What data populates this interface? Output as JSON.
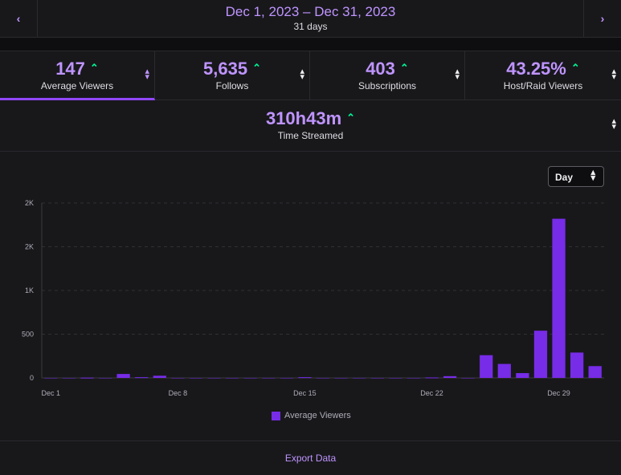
{
  "date_range": {
    "title": "Dec 1, 2023 – Dec 31, 2023",
    "subtitle": "31 days"
  },
  "nav": {
    "prev": "‹",
    "next": "›"
  },
  "stats": [
    {
      "value": "147",
      "label": "Average Viewers",
      "trend": "up",
      "active": true
    },
    {
      "value": "5,635",
      "label": "Follows",
      "trend": "up",
      "active": false
    },
    {
      "value": "403",
      "label": "Subscriptions",
      "trend": "up",
      "active": false
    },
    {
      "value": "43.25%",
      "label": "Host/Raid Viewers",
      "trend": "up",
      "active": false
    },
    {
      "value": "310h43m",
      "label": "Time Streamed",
      "trend": "up",
      "active": false
    }
  ],
  "granularity_select": {
    "value": "Day"
  },
  "export_label": "Export Data",
  "colors": {
    "accent": "#bf94ff",
    "bar": "#772ce8",
    "trend_up": "#00f593"
  },
  "chart_data": {
    "type": "bar",
    "x_tick_labels": [
      "Dec 1",
      "Dec 8",
      "Dec 15",
      "Dec 22",
      "Dec 29"
    ],
    "y_tick_labels": [
      "0",
      "500",
      "1K",
      "2K",
      "2K"
    ],
    "ylim": [
      0,
      2000
    ],
    "grid": true,
    "legend": "bottom-center",
    "series": [
      {
        "name": "Average Viewers",
        "categories": [
          "Dec 1",
          "Dec 2",
          "Dec 3",
          "Dec 4",
          "Dec 5",
          "Dec 6",
          "Dec 7",
          "Dec 8",
          "Dec 9",
          "Dec 10",
          "Dec 11",
          "Dec 12",
          "Dec 13",
          "Dec 14",
          "Dec 15",
          "Dec 16",
          "Dec 17",
          "Dec 18",
          "Dec 19",
          "Dec 20",
          "Dec 21",
          "Dec 22",
          "Dec 23",
          "Dec 24",
          "Dec 25",
          "Dec 26",
          "Dec 27",
          "Dec 28",
          "Dec 29",
          "Dec 30",
          "Dec 31"
        ],
        "values": [
          0,
          0,
          3,
          0,
          45,
          8,
          25,
          0,
          0,
          0,
          0,
          0,
          0,
          0,
          8,
          0,
          0,
          0,
          0,
          0,
          0,
          5,
          20,
          0,
          260,
          160,
          55,
          540,
          1820,
          290,
          135
        ]
      }
    ]
  }
}
